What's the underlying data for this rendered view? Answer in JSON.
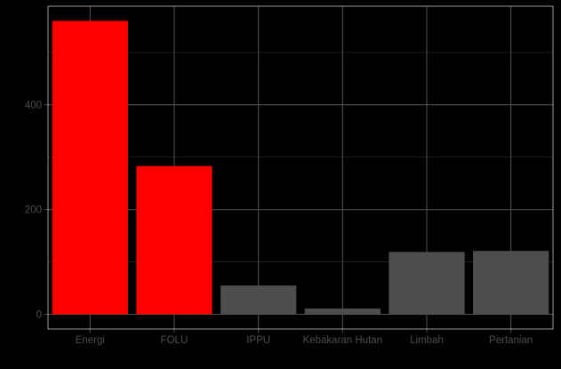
{
  "chart_data": {
    "type": "bar",
    "title": "",
    "xlabel": "",
    "ylabel": "",
    "categories": [
      "Energi",
      "FOLU",
      "IPPU",
      "Kebakaran Hutan",
      "Limbah",
      "Pertanian"
    ],
    "values": [
      560,
      283,
      55,
      11,
      119,
      121
    ],
    "highlighted": [
      true,
      true,
      false,
      false,
      false,
      false
    ],
    "ylim": [
      -28,
      588
    ],
    "yticks": [
      0,
      200,
      400
    ],
    "ytick_labels": [
      "0",
      "200",
      "400"
    ],
    "grid": true,
    "colors": {
      "background": "#000000",
      "highlight_bar": "#ff0000",
      "normal_bar": "#4d4d4d",
      "grid_major": "#4d4d4d",
      "grid_minor": "#262626",
      "panel_border": "#ffffff",
      "axis_text": "#4d4d4d"
    }
  }
}
